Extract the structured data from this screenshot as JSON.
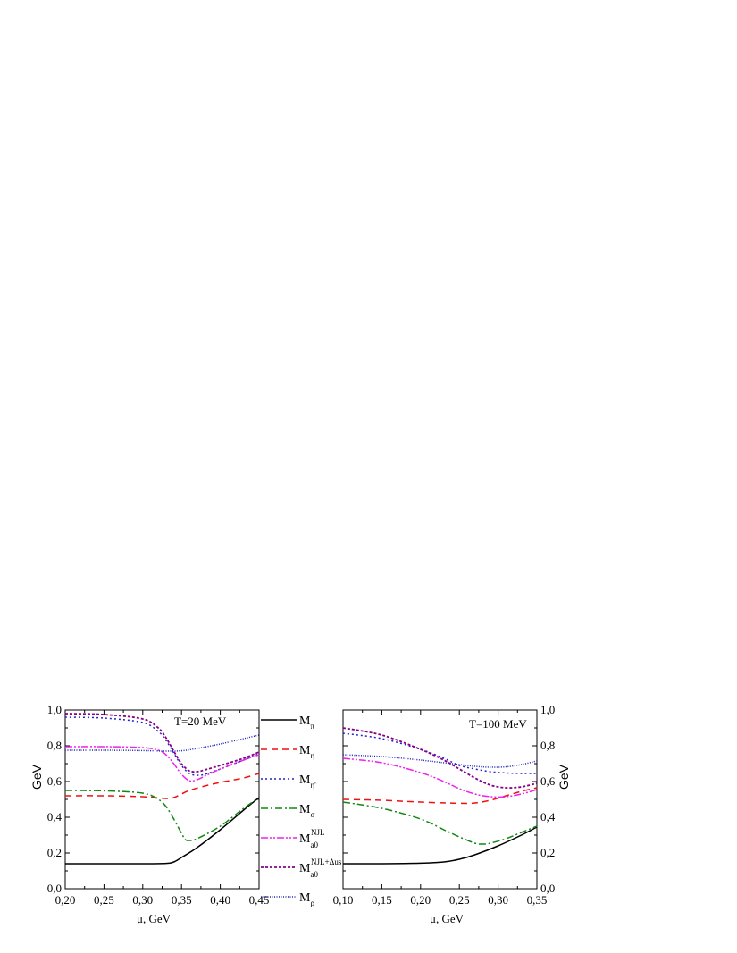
{
  "chart_data": [
    {
      "type": "line",
      "annotation": "T=20 MeV",
      "xlabel": "μ, GeV",
      "ylabel": "GeV",
      "xlim": [
        0.2,
        0.45
      ],
      "ylim": [
        0.0,
        1.0
      ],
      "xticks": [
        "0,20",
        "0,25",
        "0,30",
        "0,35",
        "0,40",
        "0,45"
      ],
      "yticks": [
        "0,0",
        "0,2",
        "0,4",
        "0,6",
        "0,8",
        "1,0"
      ],
      "series": [
        {
          "name": "M_π",
          "key": "pi",
          "x": [
            0.2,
            0.25,
            0.3,
            0.33,
            0.34,
            0.35,
            0.37,
            0.4,
            0.43,
            0.45
          ],
          "y": [
            0.14,
            0.14,
            0.14,
            0.142,
            0.15,
            0.175,
            0.23,
            0.33,
            0.44,
            0.51
          ]
        },
        {
          "name": "M_η",
          "key": "eta",
          "x": [
            0.2,
            0.25,
            0.3,
            0.33,
            0.34,
            0.35,
            0.36,
            0.38,
            0.4,
            0.43,
            0.45
          ],
          "y": [
            0.52,
            0.52,
            0.515,
            0.505,
            0.51,
            0.53,
            0.55,
            0.575,
            0.595,
            0.62,
            0.645
          ]
        },
        {
          "name": "M_η'",
          "key": "etap",
          "x": [
            0.2,
            0.25,
            0.3,
            0.32,
            0.33,
            0.34,
            0.35,
            0.36,
            0.37,
            0.38,
            0.4,
            0.43,
            0.45
          ],
          "y": [
            0.96,
            0.955,
            0.93,
            0.88,
            0.83,
            0.76,
            0.69,
            0.645,
            0.635,
            0.64,
            0.67,
            0.72,
            0.755
          ]
        },
        {
          "name": "M_σ",
          "key": "sigma",
          "x": [
            0.2,
            0.25,
            0.3,
            0.32,
            0.33,
            0.34,
            0.35,
            0.355,
            0.36,
            0.37,
            0.4,
            0.43,
            0.45
          ],
          "y": [
            0.55,
            0.548,
            0.535,
            0.5,
            0.46,
            0.39,
            0.31,
            0.275,
            0.27,
            0.28,
            0.35,
            0.45,
            0.51
          ]
        },
        {
          "name": "M_a0^NJL",
          "key": "a0njl",
          "x": [
            0.2,
            0.25,
            0.3,
            0.32,
            0.33,
            0.34,
            0.35,
            0.36,
            0.37,
            0.38,
            0.4,
            0.43,
            0.45
          ],
          "y": [
            0.795,
            0.795,
            0.79,
            0.775,
            0.75,
            0.7,
            0.64,
            0.605,
            0.61,
            0.63,
            0.67,
            0.72,
            0.75
          ]
        },
        {
          "name": "M_a0^NJL+Δus",
          "key": "a0d",
          "x": [
            0.2,
            0.25,
            0.3,
            0.32,
            0.33,
            0.34,
            0.35,
            0.36,
            0.37,
            0.38,
            0.4,
            0.43,
            0.45
          ],
          "y": [
            0.98,
            0.975,
            0.95,
            0.9,
            0.845,
            0.77,
            0.7,
            0.66,
            0.655,
            0.665,
            0.69,
            0.73,
            0.765
          ]
        },
        {
          "name": "M_ρ",
          "key": "rho",
          "x": [
            0.2,
            0.25,
            0.3,
            0.33,
            0.35,
            0.37,
            0.4,
            0.43,
            0.45
          ],
          "y": [
            0.775,
            0.775,
            0.773,
            0.77,
            0.772,
            0.785,
            0.81,
            0.84,
            0.86
          ]
        }
      ]
    },
    {
      "type": "line",
      "annotation": "T=100 MeV",
      "xlabel": "μ, GeV",
      "ylabel": "GeV",
      "xlim": [
        0.1,
        0.35
      ],
      "ylim": [
        0.0,
        1.0
      ],
      "xticks": [
        "0,10",
        "0,15",
        "0,20",
        "0,25",
        "0,30",
        "0,35"
      ],
      "yticks": [
        "0,0",
        "0,2",
        "0,4",
        "0,6",
        "0,8",
        "1,0"
      ],
      "series": [
        {
          "name": "M_π",
          "key": "pi",
          "x": [
            0.1,
            0.15,
            0.2,
            0.23,
            0.25,
            0.27,
            0.3,
            0.33,
            0.35
          ],
          "y": [
            0.14,
            0.14,
            0.143,
            0.15,
            0.165,
            0.19,
            0.24,
            0.3,
            0.345
          ]
        },
        {
          "name": "M_η",
          "key": "eta",
          "x": [
            0.1,
            0.15,
            0.2,
            0.25,
            0.27,
            0.29,
            0.31,
            0.33,
            0.35
          ],
          "y": [
            0.5,
            0.495,
            0.485,
            0.478,
            0.48,
            0.495,
            0.52,
            0.545,
            0.565
          ]
        },
        {
          "name": "M_η'",
          "key": "etap",
          "x": [
            0.1,
            0.15,
            0.2,
            0.23,
            0.25,
            0.27,
            0.29,
            0.31,
            0.33,
            0.35
          ],
          "y": [
            0.87,
            0.84,
            0.78,
            0.73,
            0.69,
            0.67,
            0.655,
            0.648,
            0.645,
            0.645
          ]
        },
        {
          "name": "M_σ",
          "key": "sigma",
          "x": [
            0.1,
            0.15,
            0.2,
            0.23,
            0.25,
            0.27,
            0.28,
            0.29,
            0.31,
            0.33,
            0.35
          ],
          "y": [
            0.485,
            0.45,
            0.39,
            0.33,
            0.29,
            0.255,
            0.25,
            0.255,
            0.28,
            0.315,
            0.35
          ]
        },
        {
          "name": "M_a0^NJL",
          "key": "a0njl",
          "x": [
            0.1,
            0.15,
            0.2,
            0.23,
            0.25,
            0.27,
            0.29,
            0.31,
            0.33,
            0.35
          ],
          "y": [
            0.73,
            0.705,
            0.65,
            0.6,
            0.56,
            0.53,
            0.515,
            0.515,
            0.53,
            0.555
          ]
        },
        {
          "name": "M_a0^NJL+Δus",
          "key": "a0d",
          "x": [
            0.1,
            0.15,
            0.2,
            0.23,
            0.25,
            0.27,
            0.29,
            0.31,
            0.33,
            0.35
          ],
          "y": [
            0.9,
            0.86,
            0.78,
            0.72,
            0.67,
            0.62,
            0.58,
            0.565,
            0.57,
            0.59
          ]
        },
        {
          "name": "M_ρ",
          "key": "rho",
          "x": [
            0.1,
            0.15,
            0.2,
            0.23,
            0.25,
            0.27,
            0.29,
            0.31,
            0.33,
            0.35
          ],
          "y": [
            0.75,
            0.74,
            0.72,
            0.705,
            0.695,
            0.685,
            0.68,
            0.682,
            0.695,
            0.715
          ]
        }
      ]
    }
  ],
  "legend": {
    "items": [
      {
        "key": "pi",
        "main": "M",
        "sub": "π",
        "sup": ""
      },
      {
        "key": "eta",
        "main": "M",
        "sub": "η",
        "sup": ""
      },
      {
        "key": "etap",
        "main": "M",
        "sub": "η'",
        "sup": ""
      },
      {
        "key": "sigma",
        "main": "M",
        "sub": "σ",
        "sup": ""
      },
      {
        "key": "a0njl",
        "main": "M",
        "sub": "a0",
        "sup": "NJL"
      },
      {
        "key": "a0d",
        "main": "M",
        "sub": "a0",
        "sup": "NJL+Δus"
      },
      {
        "key": "rho",
        "main": "M",
        "sub": "ρ",
        "sup": ""
      }
    ]
  },
  "styles": {
    "pi": {
      "color": "#000000",
      "dash": "",
      "width": 1.5
    },
    "eta": {
      "color": "#ee1111",
      "dash": "7,5",
      "width": 1.5
    },
    "etap": {
      "color": "#2222cc",
      "dash": "2,3",
      "width": 1.5
    },
    "sigma": {
      "color": "#118811",
      "dash": "8,3,2,3",
      "width": 1.5
    },
    "a0njl": {
      "color": "#ee22ee",
      "dash": "8,2,2,2,2,2",
      "width": 1.5
    },
    "a0d": {
      "color": "#880088",
      "dash": "3,2",
      "width": 1.8
    },
    "rho": {
      "color": "#2222bb",
      "dash": "1,1.5",
      "width": 1.5
    }
  }
}
